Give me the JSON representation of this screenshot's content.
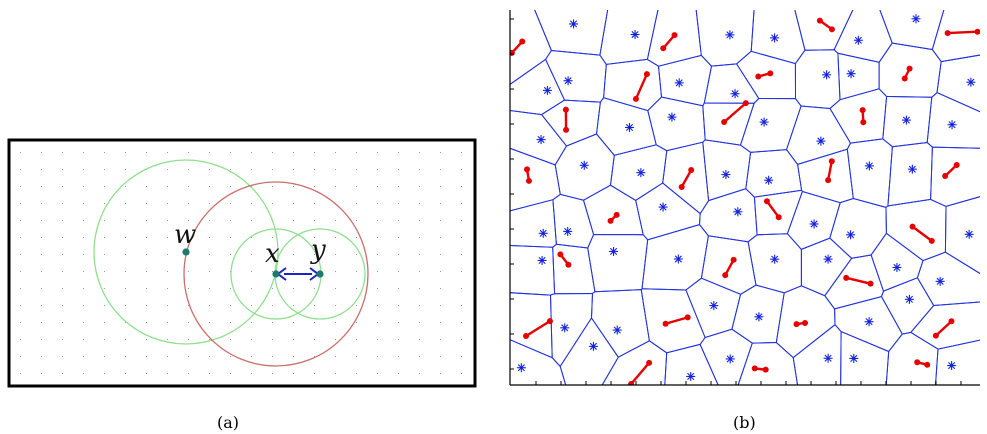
{
  "captions": {
    "a": "(a)",
    "b": "(b)"
  },
  "panel_a": {
    "points": [
      {
        "id": "w",
        "label": "w"
      },
      {
        "id": "x",
        "label": "x"
      },
      {
        "id": "y",
        "label": "y"
      }
    ],
    "colors": {
      "frame": "#000000",
      "green_circle": "#8fe08f",
      "red_circle": "#c9706c",
      "point": "#1f7a6e",
      "arrow": "#1a22c8",
      "grid_dot": "#9a9a9a"
    }
  },
  "panel_b": {
    "colors": {
      "voronoi": "#2233dd",
      "star": "#1122dd",
      "segment": "#e60000",
      "frame": "#000000"
    }
  }
}
